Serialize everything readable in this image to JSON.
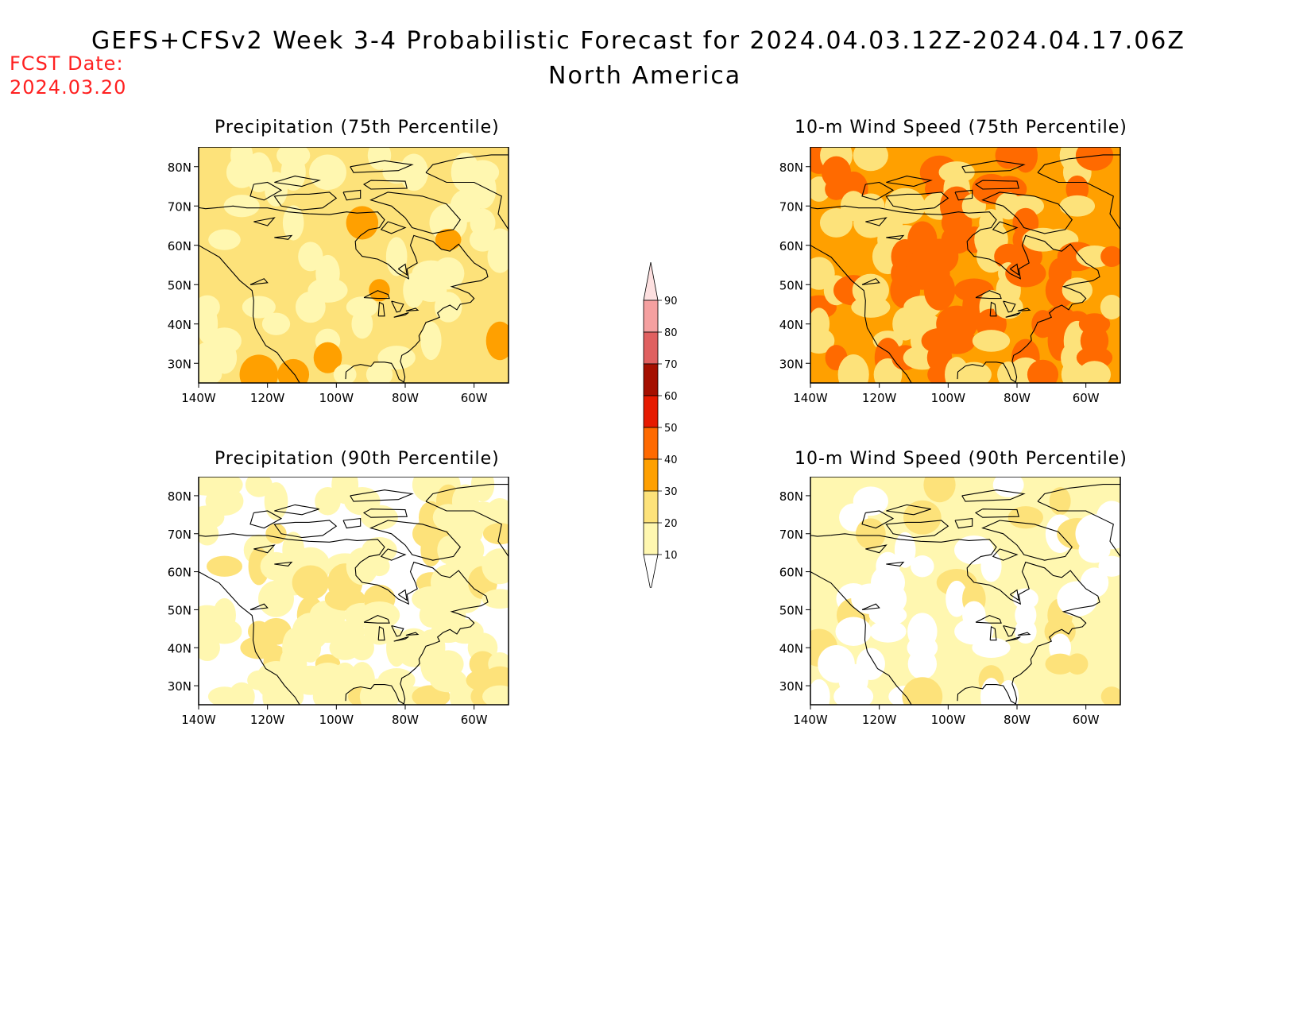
{
  "header": {
    "title": "GEFS+CFSv2 Week 3-4 Probabilistic Forecast for 2024.04.03.12Z-2024.04.17.06Z",
    "region": "North America",
    "fcst_label": "FCST Date:",
    "fcst_date": "2024.03.20"
  },
  "axes": {
    "lat_labels": [
      "80N",
      "70N",
      "60N",
      "50N",
      "40N",
      "30N"
    ],
    "lon_labels": [
      "140W",
      "120W",
      "100W",
      "80W",
      "60W"
    ]
  },
  "panels": [
    {
      "title": "Precipitation (75th Percentile)",
      "dominant_category": 20
    },
    {
      "title": "10-m Wind Speed (75th Percentile)",
      "dominant_category": 30
    },
    {
      "title": "Precipitation (90th Percentile)",
      "dominant_category": 0
    },
    {
      "title": "10-m Wind Speed (90th Percentile)",
      "dominant_category": 10
    }
  ],
  "colorbar": {
    "levels": [
      "10",
      "20",
      "30",
      "40",
      "50",
      "60",
      "70",
      "80",
      "90"
    ],
    "colors": [
      "#ffffff",
      "#fff7b0",
      "#fde27a",
      "#ffa000",
      "#ff6a00",
      "#e61a00",
      "#a50f00",
      "#e06060",
      "#f5a0a0",
      "#fde0e0"
    ]
  }
}
